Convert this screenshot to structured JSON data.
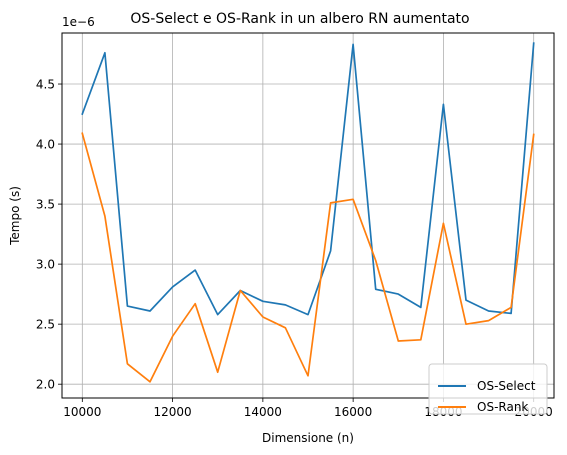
{
  "chart_data": {
    "type": "line",
    "title": "OS-Select e OS-Rank in un albero RN aumentato",
    "xlabel": "Dimensione (n)",
    "ylabel": "Tempo (s)",
    "y_scale_label": "1e−6",
    "xlim": [
      9550,
      20450
    ],
    "ylim": [
      1.885,
      4.925
    ],
    "x_ticks": [
      10000,
      12000,
      14000,
      16000,
      18000,
      20000
    ],
    "x_tick_labels": [
      "10000",
      "12000",
      "14000",
      "16000",
      "18000",
      "20000"
    ],
    "y_ticks": [
      2.0,
      2.5,
      3.0,
      3.5,
      4.0,
      4.5
    ],
    "y_tick_labels": [
      "2.0",
      "2.5",
      "3.0",
      "3.5",
      "4.0",
      "4.5"
    ],
    "grid": true,
    "legend_position": "lower-right",
    "x": [
      10000,
      10500,
      11000,
      11500,
      12000,
      12500,
      13000,
      13500,
      14000,
      14500,
      15000,
      15500,
      16000,
      16500,
      17000,
      17500,
      18000,
      18500,
      19000,
      19500,
      20000
    ],
    "series": [
      {
        "name": "OS-Select",
        "color": "#1f77b4",
        "values": [
          4.25,
          4.76,
          2.65,
          2.61,
          2.81,
          2.95,
          2.58,
          2.78,
          2.69,
          2.66,
          2.58,
          3.11,
          4.83,
          2.79,
          2.75,
          2.64,
          4.33,
          2.7,
          2.61,
          2.59,
          4.84
        ]
      },
      {
        "name": "OS-Rank",
        "color": "#ff7f0e",
        "values": [
          4.09,
          3.4,
          2.17,
          2.02,
          2.4,
          2.67,
          2.1,
          2.78,
          2.56,
          2.47,
          2.07,
          3.51,
          3.54,
          3.03,
          2.36,
          2.37,
          3.34,
          2.5,
          2.53,
          2.64,
          4.08
        ]
      }
    ]
  }
}
